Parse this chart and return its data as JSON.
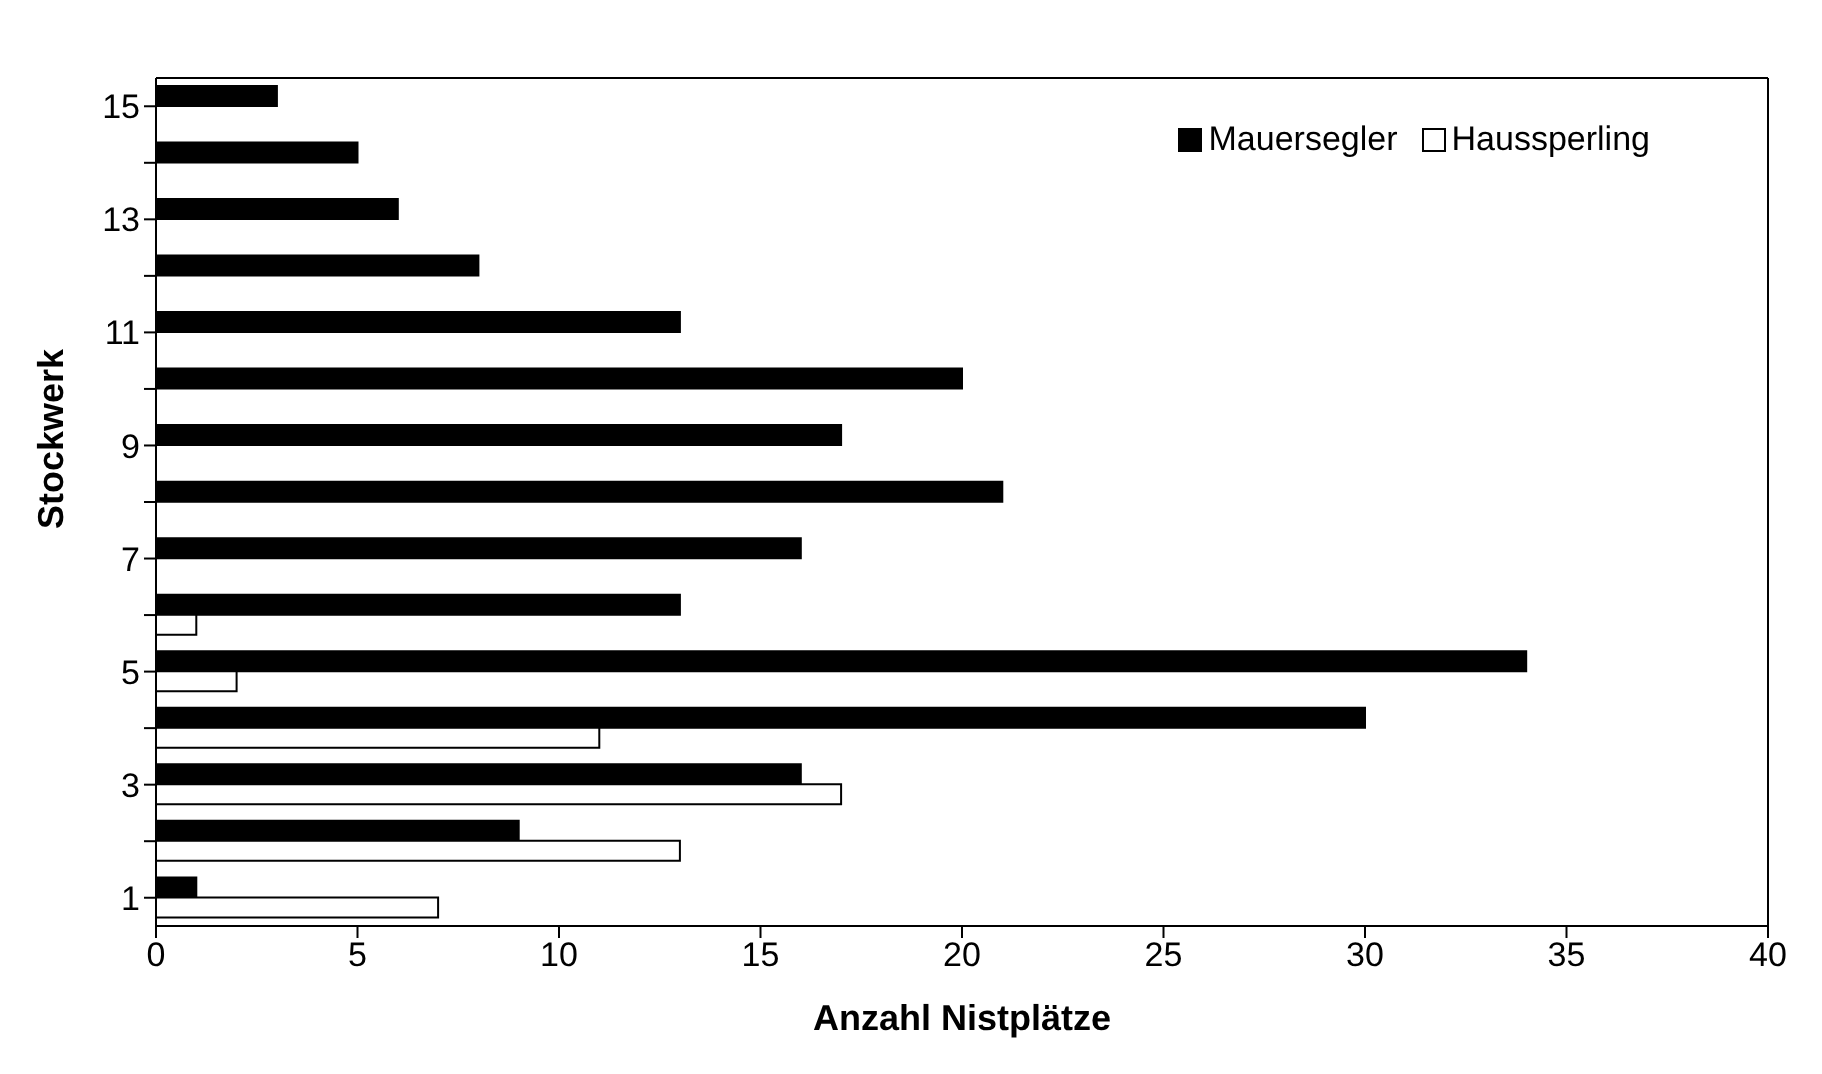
{
  "chart_data": {
    "type": "bar",
    "orientation": "horizontal",
    "xlabel": "Anzahl Nistplätze",
    "ylabel": "Stockwerk",
    "categories": [
      "15",
      null,
      "13",
      null,
      "11",
      null,
      "9",
      null,
      "7",
      null,
      "5",
      null,
      "3",
      null,
      "1"
    ],
    "series": [
      {
        "name": "Mauersegler",
        "color": "#000000",
        "values": [
          3,
          5,
          6,
          8,
          13,
          20,
          17,
          21,
          16,
          13,
          34,
          30,
          16,
          9,
          1
        ]
      },
      {
        "name": "Haussperling",
        "color": "#ffffff",
        "values": [
          0,
          0,
          0,
          0,
          0,
          0,
          0,
          0,
          0,
          1,
          2,
          11,
          17,
          13,
          7
        ]
      }
    ],
    "xlim": [
      0,
      40
    ],
    "xticks": [
      0,
      5,
      10,
      15,
      20,
      25,
      30,
      35,
      40
    ],
    "grid": false,
    "legend": "top right"
  }
}
